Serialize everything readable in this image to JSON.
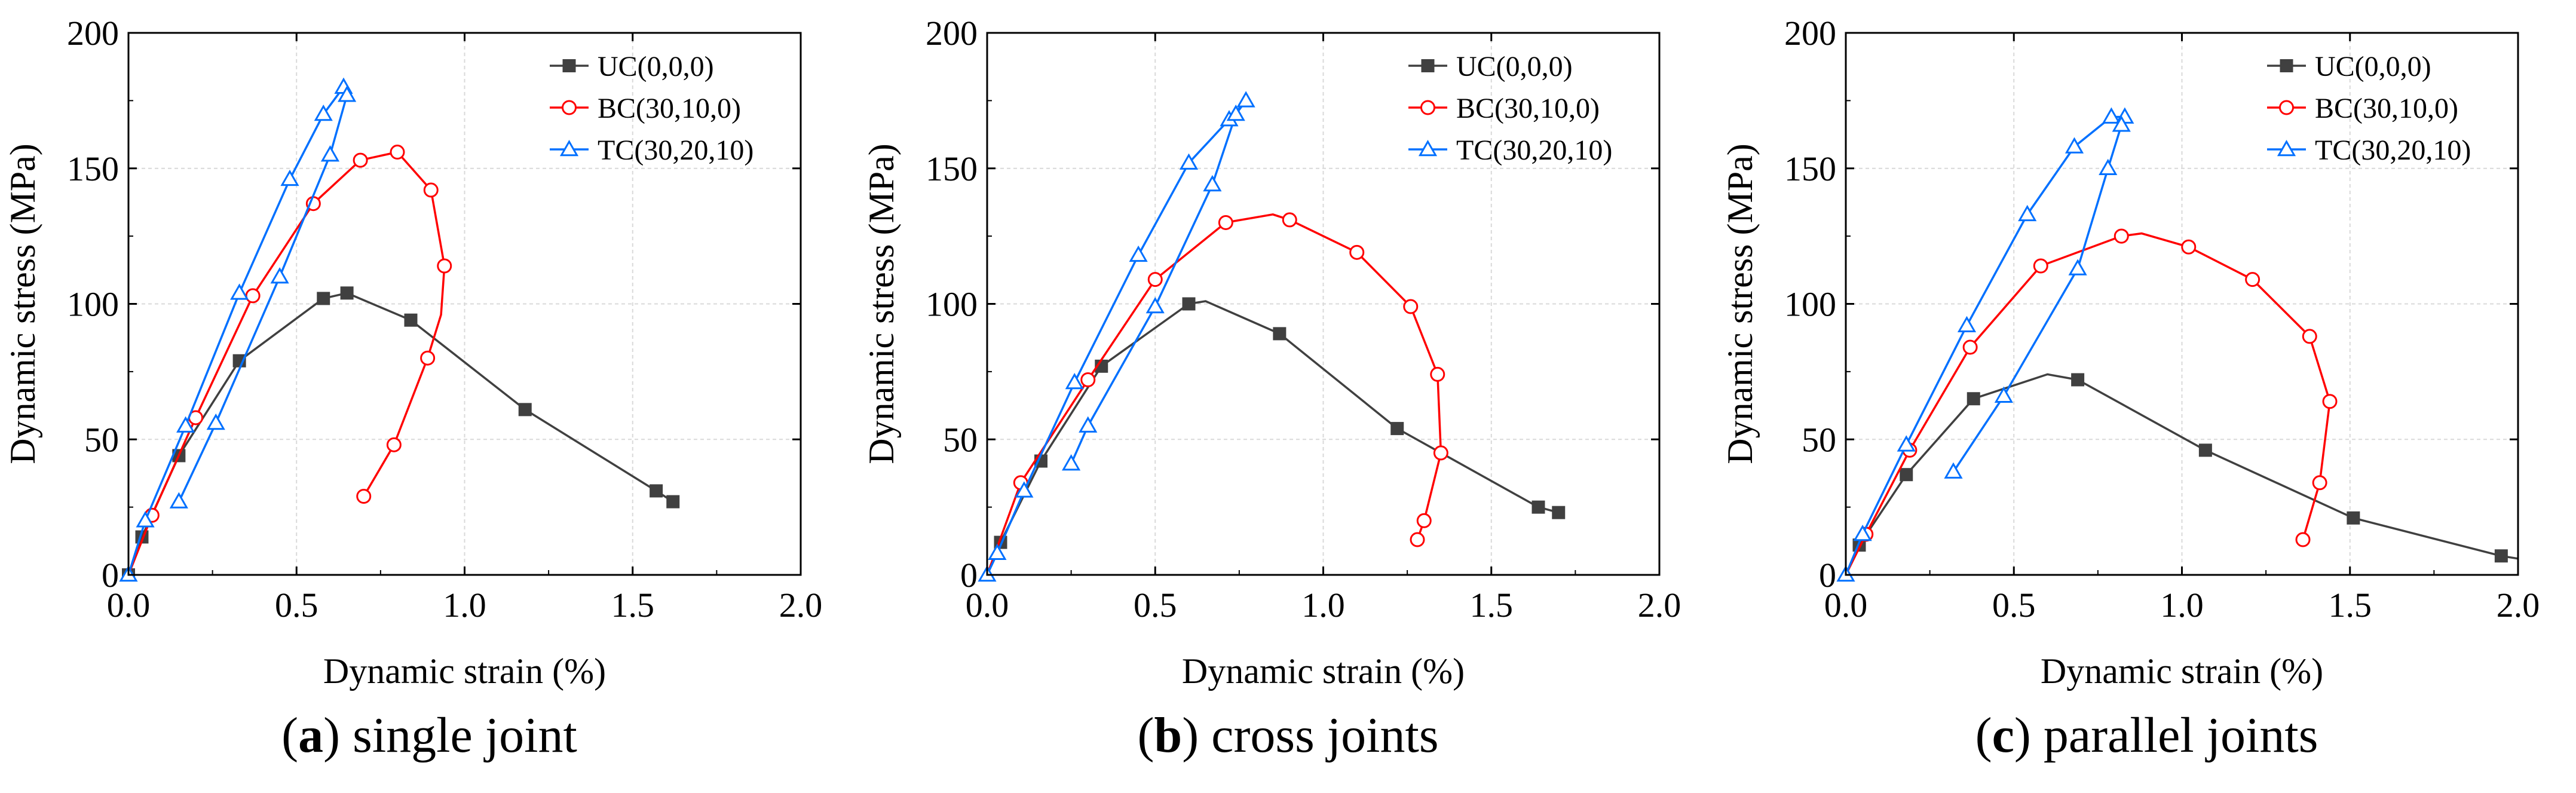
{
  "figure": {
    "panels": [
      {
        "letter": "a",
        "caption_rest": "single joint",
        "open": "(",
        "close": ")"
      },
      {
        "letter": "b",
        "caption_rest": "cross joints",
        "open": "(",
        "close": ")"
      },
      {
        "letter": "c",
        "caption_rest": "parallel joints",
        "open": "(",
        "close": ")"
      }
    ]
  },
  "chart_data": [
    {
      "type": "line",
      "panel": "a",
      "title": "(a) single joint",
      "xlabel": "Dynamic strain (%)",
      "ylabel": "Dynamic stress (MPa)",
      "xlim": [
        0.0,
        2.0
      ],
      "ylim": [
        0,
        200
      ],
      "xticks": [
        "0.0",
        "0.5",
        "1.0",
        "1.5",
        "2.0"
      ],
      "yticks": [
        "0",
        "50",
        "100",
        "150",
        "200"
      ],
      "legend_position": "top-right",
      "series": [
        {
          "name": "UC(0,0,0)",
          "color": "#404040",
          "marker": "square",
          "x": [
            0.0,
            0.04,
            0.15,
            0.33,
            0.58,
            0.65,
            0.84,
            1.18,
            1.57,
            1.62
          ],
          "y": [
            0,
            14,
            44,
            79,
            102,
            104,
            94,
            61,
            31,
            27
          ]
        },
        {
          "name": "BC(30,10,0)",
          "color": "#ff0000",
          "marker": "circle",
          "x": [
            0.0,
            0.07,
            0.2,
            0.37,
            0.55,
            0.69,
            0.8,
            0.9,
            0.94,
            0.93,
            0.89,
            0.79,
            0.7
          ],
          "y": [
            0,
            22,
            58,
            103,
            137,
            153,
            156,
            142,
            114,
            96,
            80,
            48,
            29
          ],
          "marker_x": [
            0.07,
            0.2,
            0.37,
            0.55,
            0.69,
            0.8,
            0.9,
            0.94,
            0.89,
            0.79,
            0.7
          ],
          "marker_y": [
            22,
            58,
            103,
            137,
            153,
            156,
            142,
            114,
            80,
            48,
            29
          ]
        },
        {
          "name": "TC(30,20,10)",
          "color": "#0070ff",
          "marker": "triangle",
          "x": [
            0.0,
            0.05,
            0.17,
            0.33,
            0.48,
            0.58,
            0.64,
            0.65,
            0.6,
            0.45,
            0.26,
            0.15
          ],
          "y": [
            0,
            20,
            55,
            104,
            146,
            170,
            180,
            177,
            155,
            110,
            56,
            27
          ]
        }
      ]
    },
    {
      "type": "line",
      "panel": "b",
      "title": "(b) cross joints",
      "xlabel": "Dynamic strain (%)",
      "ylabel": "Dynamic stress (MPa)",
      "xlim": [
        0.0,
        2.0
      ],
      "ylim": [
        0,
        200
      ],
      "xticks": [
        "0.0",
        "0.5",
        "1.0",
        "1.5",
        "2.0"
      ],
      "yticks": [
        "0",
        "50",
        "100",
        "150",
        "200"
      ],
      "legend_position": "top-right",
      "series": [
        {
          "name": "UC(0,0,0)",
          "color": "#404040",
          "marker": "square",
          "x": [
            0.0,
            0.04,
            0.16,
            0.34,
            0.6,
            0.65,
            0.87,
            1.22,
            1.64,
            1.7
          ],
          "y": [
            0,
            12,
            42,
            77,
            100,
            101,
            89,
            54,
            25,
            23
          ],
          "marker_x": [
            0.04,
            0.16,
            0.34,
            0.6,
            0.87,
            1.22,
            1.64,
            1.7
          ],
          "marker_y": [
            12,
            42,
            77,
            100,
            89,
            54,
            25,
            23
          ]
        },
        {
          "name": "BC(30,10,0)",
          "color": "#ff0000",
          "marker": "circle",
          "x": [
            0.0,
            0.1,
            0.3,
            0.5,
            0.71,
            0.85,
            0.9,
            1.1,
            1.26,
            1.34,
            1.35,
            1.3,
            1.28
          ],
          "y": [
            0,
            34,
            72,
            109,
            130,
            133,
            131,
            119,
            99,
            74,
            45,
            20,
            13
          ],
          "marker_x": [
            0.1,
            0.3,
            0.5,
            0.71,
            0.9,
            1.1,
            1.26,
            1.34,
            1.35,
            1.3,
            1.28
          ],
          "marker_y": [
            34,
            72,
            109,
            130,
            131,
            119,
            99,
            74,
            45,
            20,
            13
          ]
        },
        {
          "name": "TC(30,20,10)",
          "color": "#0070ff",
          "marker": "triangle",
          "x": [
            0.0,
            0.03,
            0.11,
            0.26,
            0.45,
            0.6,
            0.72,
            0.77,
            0.74,
            0.67,
            0.5,
            0.3,
            0.25
          ],
          "y": [
            0,
            8,
            31,
            71,
            118,
            152,
            168,
            175,
            170,
            144,
            99,
            55,
            41
          ]
        }
      ]
    },
    {
      "type": "line",
      "panel": "c",
      "title": "(c) parallel joints",
      "xlabel": "Dynamic strain (%)",
      "ylabel": "Dynamic stress (MPa)",
      "xlim": [
        0.0,
        2.0
      ],
      "ylim": [
        0,
        200
      ],
      "xticks": [
        "0.0",
        "0.5",
        "1.0",
        "1.5",
        "2.0"
      ],
      "yticks": [
        "0",
        "50",
        "100",
        "150",
        "200"
      ],
      "legend_position": "top-right",
      "series": [
        {
          "name": "UC(0,0,0)",
          "color": "#404040",
          "marker": "square",
          "x": [
            0.0,
            0.04,
            0.18,
            0.38,
            0.6,
            0.69,
            1.07,
            1.51,
            1.95,
            2.0
          ],
          "y": [
            0,
            11,
            37,
            65,
            74,
            72,
            46,
            21,
            7,
            6
          ],
          "marker_x": [
            0.04,
            0.18,
            0.38,
            0.69,
            1.07,
            1.51,
            1.95
          ],
          "marker_y": [
            11,
            37,
            65,
            72,
            46,
            21,
            7
          ]
        },
        {
          "name": "BC(30,10,0)",
          "color": "#ff0000",
          "marker": "circle",
          "x": [
            0.0,
            0.06,
            0.19,
            0.37,
            0.58,
            0.82,
            0.88,
            1.02,
            1.21,
            1.38,
            1.44,
            1.41,
            1.36
          ],
          "y": [
            0,
            15,
            46,
            84,
            114,
            125,
            126,
            121,
            109,
            88,
            64,
            34,
            13
          ],
          "marker_x": [
            0.06,
            0.19,
            0.37,
            0.58,
            0.82,
            1.02,
            1.21,
            1.38,
            1.44,
            1.41,
            1.36
          ],
          "marker_y": [
            15,
            46,
            84,
            114,
            125,
            121,
            109,
            88,
            64,
            34,
            13
          ]
        },
        {
          "name": "TC(30,20,10)",
          "color": "#0070ff",
          "marker": "triangle",
          "x": [
            0.0,
            0.05,
            0.18,
            0.36,
            0.54,
            0.68,
            0.79,
            0.83,
            0.82,
            0.78,
            0.69,
            0.47,
            0.32
          ],
          "y": [
            0,
            15,
            48,
            92,
            133,
            158,
            169,
            169,
            166,
            150,
            113,
            66,
            38
          ]
        }
      ]
    }
  ]
}
